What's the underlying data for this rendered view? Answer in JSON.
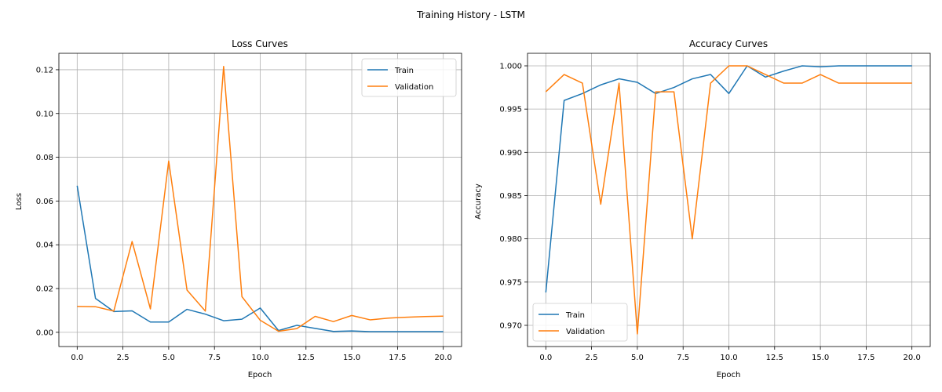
{
  "suptitle": "Training History - LSTM",
  "colors": {
    "train": "#1f77b4",
    "validation": "#ff7f0e",
    "grid": "#b0b0b0"
  },
  "chart_data": [
    {
      "type": "line",
      "title": "Loss Curves",
      "xlabel": "Epoch",
      "ylabel": "Loss",
      "xlim": [
        -1,
        21
      ],
      "ylim": [
        -0.0065,
        0.1275
      ],
      "xticks": [
        0,
        2.5,
        5,
        7.5,
        10,
        12.5,
        15,
        17.5,
        20
      ],
      "xtick_labels": [
        "0.0",
        "2.5",
        "5.0",
        "7.5",
        "10.0",
        "12.5",
        "15.0",
        "17.5",
        "20.0"
      ],
      "yticks": [
        0,
        0.02,
        0.04,
        0.06,
        0.08,
        0.1,
        0.12
      ],
      "ytick_labels": [
        "0.00",
        "0.02",
        "0.04",
        "0.06",
        "0.08",
        "0.10",
        "0.12"
      ],
      "grid": true,
      "legend_position": "upper right",
      "x": [
        0,
        1,
        2,
        3,
        4,
        5,
        6,
        7,
        8,
        9,
        10,
        11,
        12,
        13,
        14,
        15,
        16,
        17,
        18,
        19,
        20
      ],
      "series": [
        {
          "name": "Train",
          "color": "#1f77b4",
          "values": [
            0.067,
            0.0155,
            0.0095,
            0.0098,
            0.0047,
            0.0047,
            0.0105,
            0.0083,
            0.0053,
            0.006,
            0.0111,
            0.0008,
            0.0032,
            0.0018,
            0.0004,
            0.0006,
            0.0003,
            0.0003,
            0.0003,
            0.0003,
            0.0003
          ]
        },
        {
          "name": "Validation",
          "color": "#ff7f0e",
          "values": [
            0.0118,
            0.0117,
            0.0097,
            0.0415,
            0.0107,
            0.0783,
            0.0193,
            0.0097,
            0.1215,
            0.0163,
            0.0055,
            0.0005,
            0.0017,
            0.0073,
            0.0049,
            0.0077,
            0.0057,
            0.0065,
            0.0069,
            0.0072,
            0.0074
          ]
        }
      ]
    },
    {
      "type": "line",
      "title": "Accuracy Curves",
      "xlabel": "Epoch",
      "ylabel": "Accuracy",
      "xlim": [
        -1,
        21
      ],
      "ylim": [
        0.96755,
        1.00145
      ],
      "xticks": [
        0,
        2.5,
        5,
        7.5,
        10,
        12.5,
        15,
        17.5,
        20
      ],
      "xtick_labels": [
        "0.0",
        "2.5",
        "5.0",
        "7.5",
        "10.0",
        "12.5",
        "15.0",
        "17.5",
        "20.0"
      ],
      "yticks": [
        0.97,
        0.975,
        0.98,
        0.985,
        0.99,
        0.995,
        1.0
      ],
      "ytick_labels": [
        "0.970",
        "0.975",
        "0.980",
        "0.985",
        "0.990",
        "0.995",
        "1.000"
      ],
      "grid": true,
      "legend_position": "lower left",
      "x": [
        0,
        1,
        2,
        3,
        4,
        5,
        6,
        7,
        8,
        9,
        10,
        11,
        12,
        13,
        14,
        15,
        16,
        17,
        18,
        19,
        20
      ],
      "series": [
        {
          "name": "Train",
          "color": "#1f77b4",
          "values": [
            0.9738,
            0.996,
            0.9968,
            0.9978,
            0.9985,
            0.9981,
            0.9968,
            0.9975,
            0.9985,
            0.999,
            0.9968,
            1.0,
            0.9987,
            0.9994,
            1.0,
            0.9999,
            1.0,
            1.0,
            1.0,
            1.0,
            1.0
          ]
        },
        {
          "name": "Validation",
          "color": "#ff7f0e",
          "values": [
            0.997,
            0.999,
            0.998,
            0.984,
            0.998,
            0.969,
            0.997,
            0.997,
            0.98,
            0.998,
            1.0,
            1.0,
            0.999,
            0.998,
            0.998,
            0.999,
            0.998,
            0.998,
            0.998,
            0.998,
            0.998
          ]
        }
      ]
    }
  ]
}
